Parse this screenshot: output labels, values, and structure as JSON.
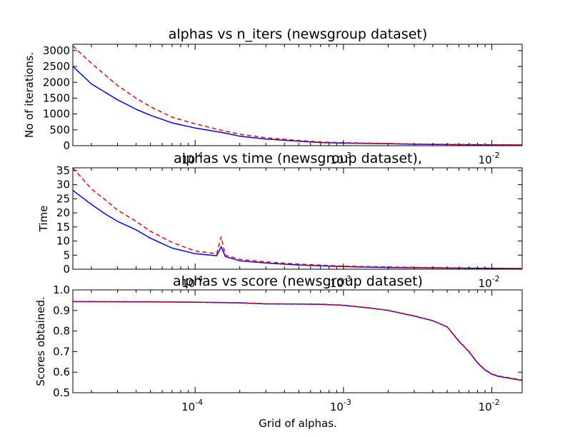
{
  "chart_data": [
    {
      "type": "line",
      "title": "alphas vs n_iters (newsgroup dataset)",
      "ylabel": "No of iterations.",
      "xlabel": "",
      "xscale": "log",
      "xlim": [
        1.5e-05,
        0.016
      ],
      "ylim": [
        0,
        3200
      ],
      "yticks": [
        0,
        500,
        1000,
        1500,
        2000,
        2500,
        3000
      ],
      "ytick_labels": [
        "0",
        "500",
        "1000",
        "1500",
        "2000",
        "2500",
        "3000"
      ],
      "xticks": [
        0.0001,
        0.001,
        0.01
      ],
      "xtick_labels": [
        [
          "10",
          "-4"
        ],
        [
          "10",
          "-3"
        ],
        [
          "10",
          "-2"
        ]
      ],
      "x": [
        1.5e-05,
        2e-05,
        3e-05,
        4e-05,
        5e-05,
        7e-05,
        0.0001,
        0.00015,
        0.0002,
        0.0003,
        0.0005,
        0.0007,
        0.001,
        0.002,
        0.003,
        0.005,
        0.01,
        0.016
      ],
      "series": [
        {
          "color": "#0000ff",
          "dash": "solid",
          "values": [
            2500,
            1950,
            1450,
            1150,
            960,
            720,
            560,
            420,
            300,
            210,
            140,
            100,
            80,
            60,
            45,
            35,
            25,
            20
          ]
        },
        {
          "color": "#ff0000",
          "dash": "dashed",
          "values": [
            3150,
            2600,
            1900,
            1500,
            1230,
            900,
            690,
            490,
            360,
            250,
            165,
            118,
            95,
            70,
            55,
            42,
            30,
            25
          ]
        }
      ]
    },
    {
      "type": "line",
      "title": "alphas vs time (newsgroup dataset),",
      "ylabel": "Time",
      "xlabel": "",
      "xscale": "log",
      "xlim": [
        1.5e-05,
        0.016
      ],
      "ylim": [
        0,
        36
      ],
      "yticks": [
        0,
        5,
        10,
        15,
        20,
        25,
        30,
        35
      ],
      "ytick_labels": [
        "0",
        "5",
        "10",
        "15",
        "20",
        "25",
        "30",
        "35"
      ],
      "xticks": [
        0.0001,
        0.001,
        0.01
      ],
      "xtick_labels": [
        [
          "10",
          "-4"
        ],
        [
          "10",
          "-3"
        ],
        [
          "10",
          "-2"
        ]
      ],
      "x": [
        1.5e-05,
        2e-05,
        2.5e-05,
        3e-05,
        4e-05,
        5e-05,
        7e-05,
        0.0001,
        0.00014,
        0.00015,
        0.00016,
        0.0002,
        0.0003,
        0.0005,
        0.001,
        0.002,
        0.005,
        0.01,
        0.016
      ],
      "series": [
        {
          "color": "#0000ff",
          "dash": "solid",
          "values": [
            28,
            23,
            19.5,
            17,
            14,
            11,
            7.5,
            5.5,
            4.8,
            8,
            4.5,
            3,
            2.2,
            1.5,
            0.9,
            0.6,
            0.4,
            0.3,
            0.2
          ]
        },
        {
          "color": "#ff0000",
          "dash": "dashed",
          "values": [
            36,
            28.5,
            24.5,
            21,
            17,
            13.5,
            9.5,
            6.5,
            5.5,
            11.5,
            5,
            3.5,
            2.6,
            1.8,
            1.1,
            0.8,
            0.5,
            0.35,
            0.3
          ]
        }
      ]
    },
    {
      "type": "line",
      "title": "alphas vs score (newsgroup dataset)",
      "ylabel": "Scores obtained.",
      "xlabel": "Grid of alphas.",
      "xscale": "log",
      "xlim": [
        1.5e-05,
        0.016
      ],
      "ylim": [
        0.5,
        1.0
      ],
      "yticks": [
        0.5,
        0.6,
        0.7,
        0.8,
        0.9,
        1.0
      ],
      "ytick_labels": [
        "0.5",
        "0.6",
        "0.7",
        "0.8",
        "0.9",
        "1.0"
      ],
      "xticks": [
        0.0001,
        0.001,
        0.01
      ],
      "xtick_labels": [
        [
          "10",
          "-4"
        ],
        [
          "10",
          "-3"
        ],
        [
          "10",
          "-2"
        ]
      ],
      "x": [
        1.5e-05,
        5e-05,
        0.0001,
        0.0002,
        0.0003,
        0.0005,
        0.0007,
        0.001,
        0.0015,
        0.002,
        0.003,
        0.004,
        0.005,
        0.006,
        0.007,
        0.008,
        0.009,
        0.01,
        0.011,
        0.016
      ],
      "series": [
        {
          "color": "#0000ff",
          "dash": "solid",
          "values": [
            0.943,
            0.942,
            0.94,
            0.937,
            0.932,
            0.931,
            0.93,
            0.925,
            0.912,
            0.9,
            0.873,
            0.85,
            0.82,
            0.75,
            0.7,
            0.645,
            0.61,
            0.59,
            0.58,
            0.56
          ]
        },
        {
          "color": "#ff0000",
          "dash": "dashed",
          "values": [
            0.944,
            0.943,
            0.941,
            0.938,
            0.933,
            0.932,
            0.931,
            0.926,
            0.913,
            0.901,
            0.874,
            0.851,
            0.821,
            0.752,
            0.702,
            0.647,
            0.612,
            0.592,
            0.582,
            0.562
          ]
        }
      ]
    }
  ]
}
